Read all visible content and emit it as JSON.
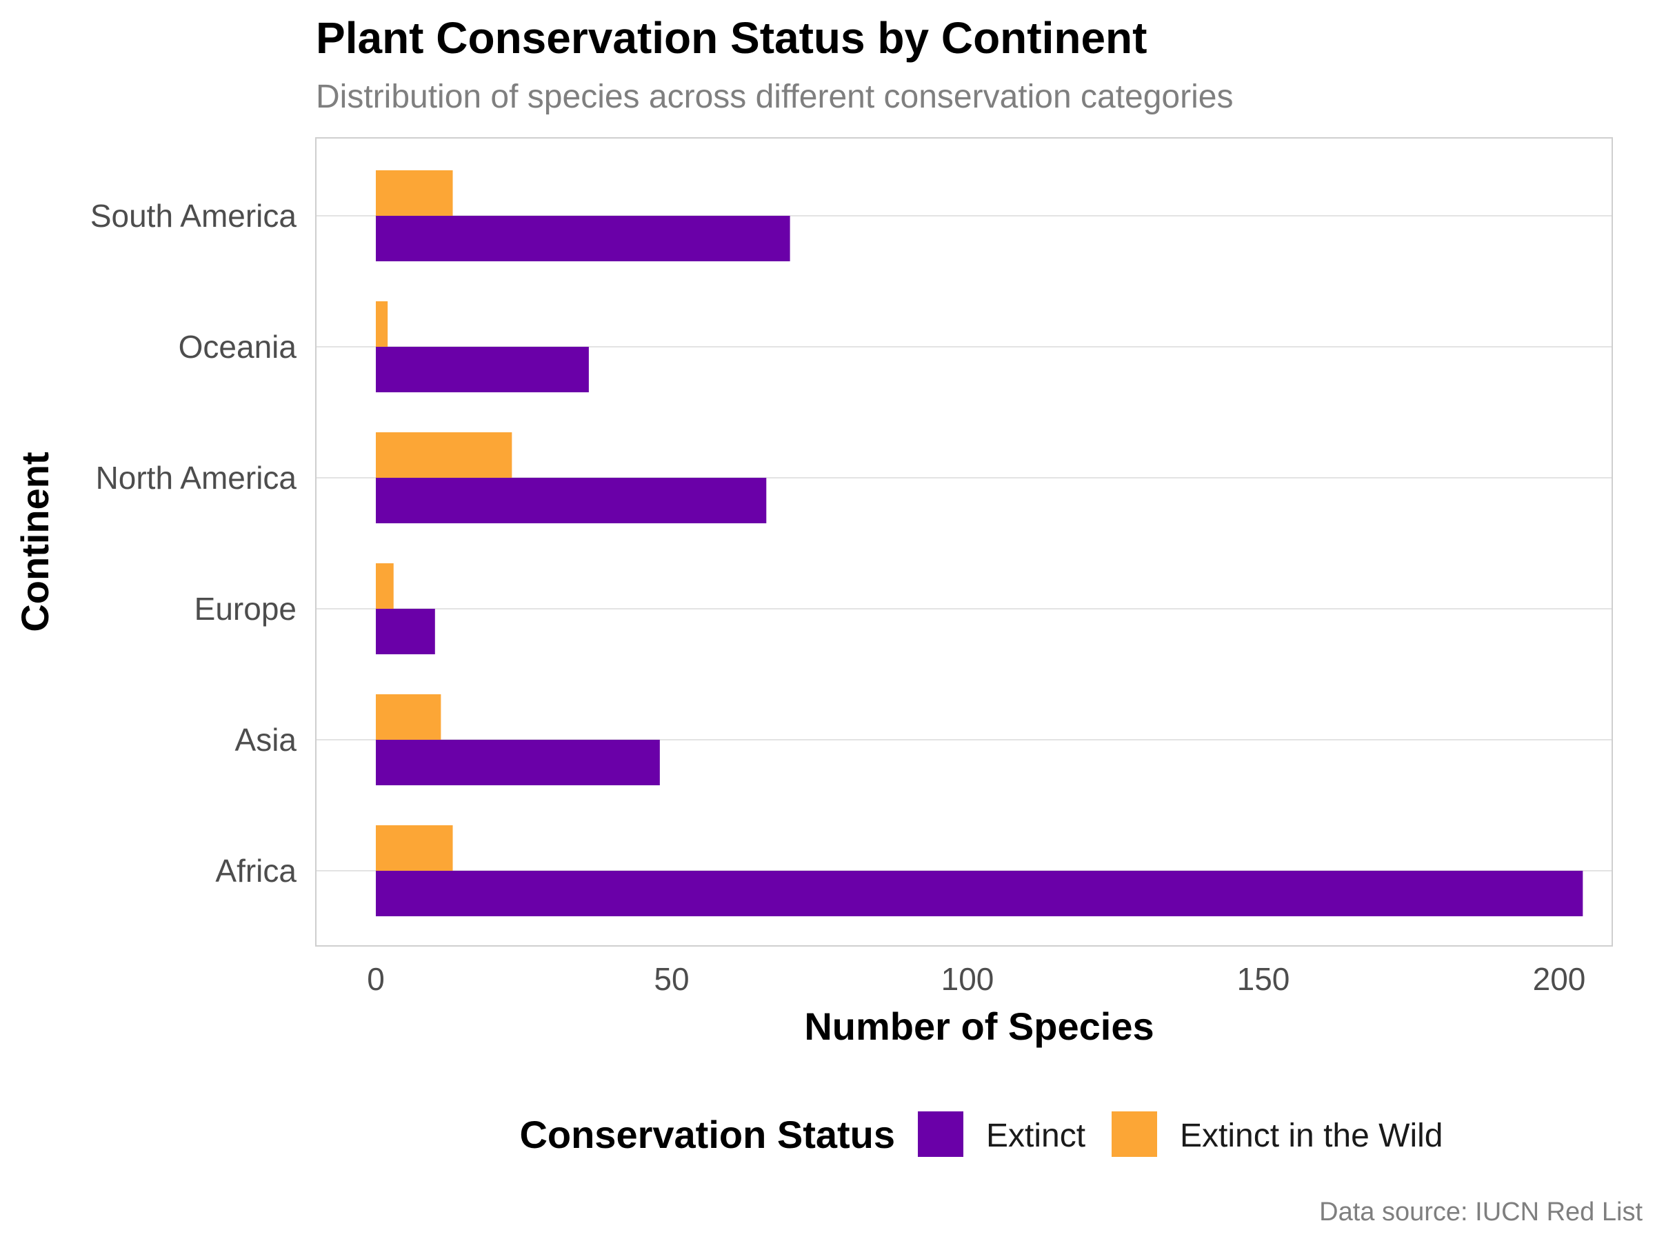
{
  "chart_data": {
    "type": "bar",
    "orientation": "horizontal",
    "title": "Plant Conservation Status by Continent",
    "subtitle": "Distribution of species across different conservation categories",
    "xlabel": "Number of Species",
    "ylabel": "Continent",
    "caption": "Data source: IUCN Red List",
    "categories": [
      "Africa",
      "Asia",
      "Europe",
      "North America",
      "Oceania",
      "South America"
    ],
    "series": [
      {
        "name": "Extinct",
        "color": "#6a00a8",
        "values": [
          204,
          48,
          10,
          66,
          36,
          70
        ]
      },
      {
        "name": "Extinct in the Wild",
        "color": "#fca636",
        "values": [
          13,
          11,
          3,
          23,
          2,
          13
        ]
      }
    ],
    "xlim": [
      -10,
      210
    ],
    "xticks": [
      0,
      50,
      100,
      150,
      200
    ],
    "grid": true,
    "legend": {
      "title": "Conservation Status",
      "position": "bottom"
    }
  }
}
